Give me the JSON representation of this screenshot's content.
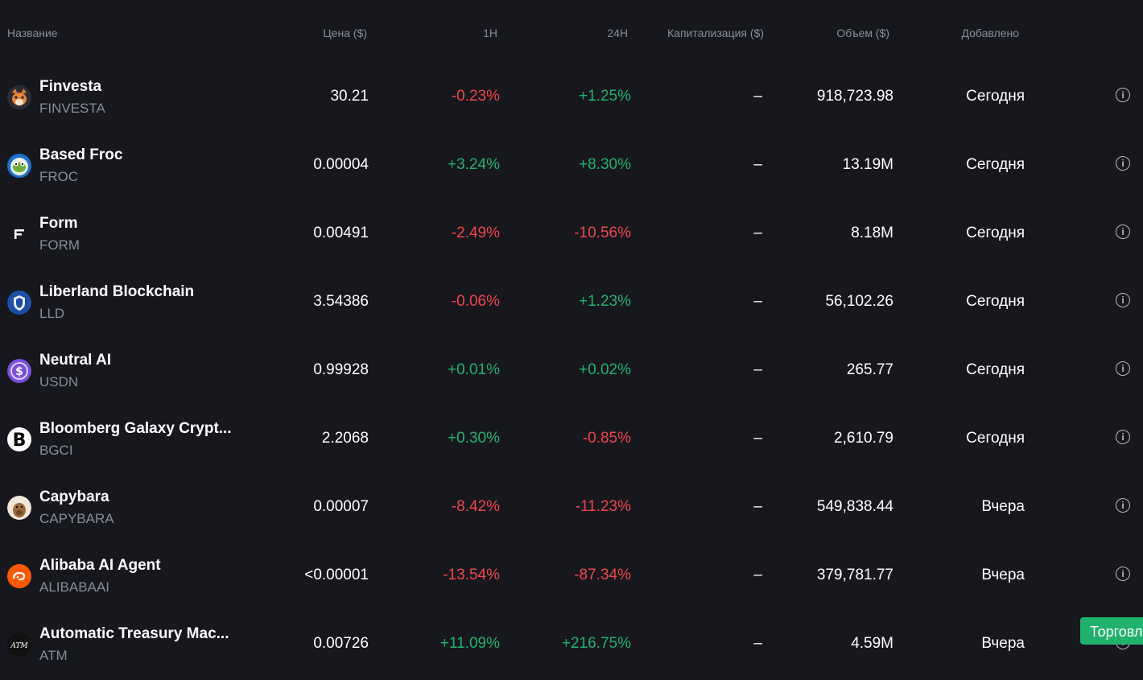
{
  "header": {
    "name": "Название",
    "price": "Цена ($)",
    "h1": "1H",
    "h24": "24H",
    "cap": "Капитализация ($)",
    "volume": "Объем ($)",
    "added": "Добавлено"
  },
  "rows": [
    {
      "name": "Finvesta",
      "symbol": "FINVESTA",
      "price": "30.21",
      "h1": "-0.23%",
      "h1_dir": "neg",
      "h24": "+1.25%",
      "h24_dir": "pos",
      "cap": "–",
      "volume": "918,723.98",
      "added": "Сегодня",
      "icon": "fox-logo-icon"
    },
    {
      "name": "Based Froc",
      "symbol": "FROC",
      "price": "0.00004",
      "h1": "+3.24%",
      "h1_dir": "pos",
      "h24": "+8.30%",
      "h24_dir": "pos",
      "cap": "–",
      "volume": "13.19M",
      "added": "Сегодня",
      "icon": "frog-logo-icon"
    },
    {
      "name": "Form",
      "symbol": "FORM",
      "price": "0.00491",
      "h1": "-2.49%",
      "h1_dir": "neg",
      "h24": "-10.56%",
      "h24_dir": "neg",
      "cap": "–",
      "volume": "8.18M",
      "added": "Сегодня",
      "icon": "form-logo-icon"
    },
    {
      "name": "Liberland Blockchain",
      "symbol": "LLD",
      "price": "3.54386",
      "h1": "-0.06%",
      "h1_dir": "neg",
      "h24": "+1.23%",
      "h24_dir": "pos",
      "cap": "–",
      "volume": "56,102.26",
      "added": "Сегодня",
      "icon": "shield-logo-icon"
    },
    {
      "name": "Neutral AI",
      "symbol": "USDN",
      "price": "0.99928",
      "h1": "+0.01%",
      "h1_dir": "pos",
      "h24": "+0.02%",
      "h24_dir": "pos",
      "cap": "–",
      "volume": "265.77",
      "added": "Сегодня",
      "icon": "dollar-coin-icon"
    },
    {
      "name": "Bloomberg Galaxy Crypt...",
      "symbol": "BGCI",
      "price": "2.2068",
      "h1": "+0.30%",
      "h1_dir": "pos",
      "h24": "-0.85%",
      "h24_dir": "neg",
      "cap": "–",
      "volume": "2,610.79",
      "added": "Сегодня",
      "icon": "b-logo-icon"
    },
    {
      "name": "Capybara",
      "symbol": "CAPYBARA",
      "price": "0.00007",
      "h1": "-8.42%",
      "h1_dir": "neg",
      "h24": "-11.23%",
      "h24_dir": "neg",
      "cap": "–",
      "volume": "549,838.44",
      "added": "Вчера",
      "icon": "capybara-logo-icon"
    },
    {
      "name": "Alibaba AI Agent",
      "symbol": "ALIBABAAI",
      "price": "<0.00001",
      "h1": "-13.54%",
      "h1_dir": "neg",
      "h24": "-87.34%",
      "h24_dir": "neg",
      "cap": "–",
      "volume": "379,781.77",
      "added": "Вчера",
      "icon": "alibaba-logo-icon"
    },
    {
      "name": "Automatic Treasury Mac...",
      "symbol": "ATM",
      "price": "0.00726",
      "h1": "+11.09%",
      "h1_dir": "pos",
      "h24": "+216.75%",
      "h24_dir": "pos",
      "cap": "–",
      "volume": "4.59M",
      "added": "Вчера",
      "icon": "atm-logo-icon"
    }
  ],
  "trade_button": "Торговля",
  "colors": {
    "positive": "#20b26c",
    "negative": "#ef454a",
    "background": "#17181e"
  }
}
